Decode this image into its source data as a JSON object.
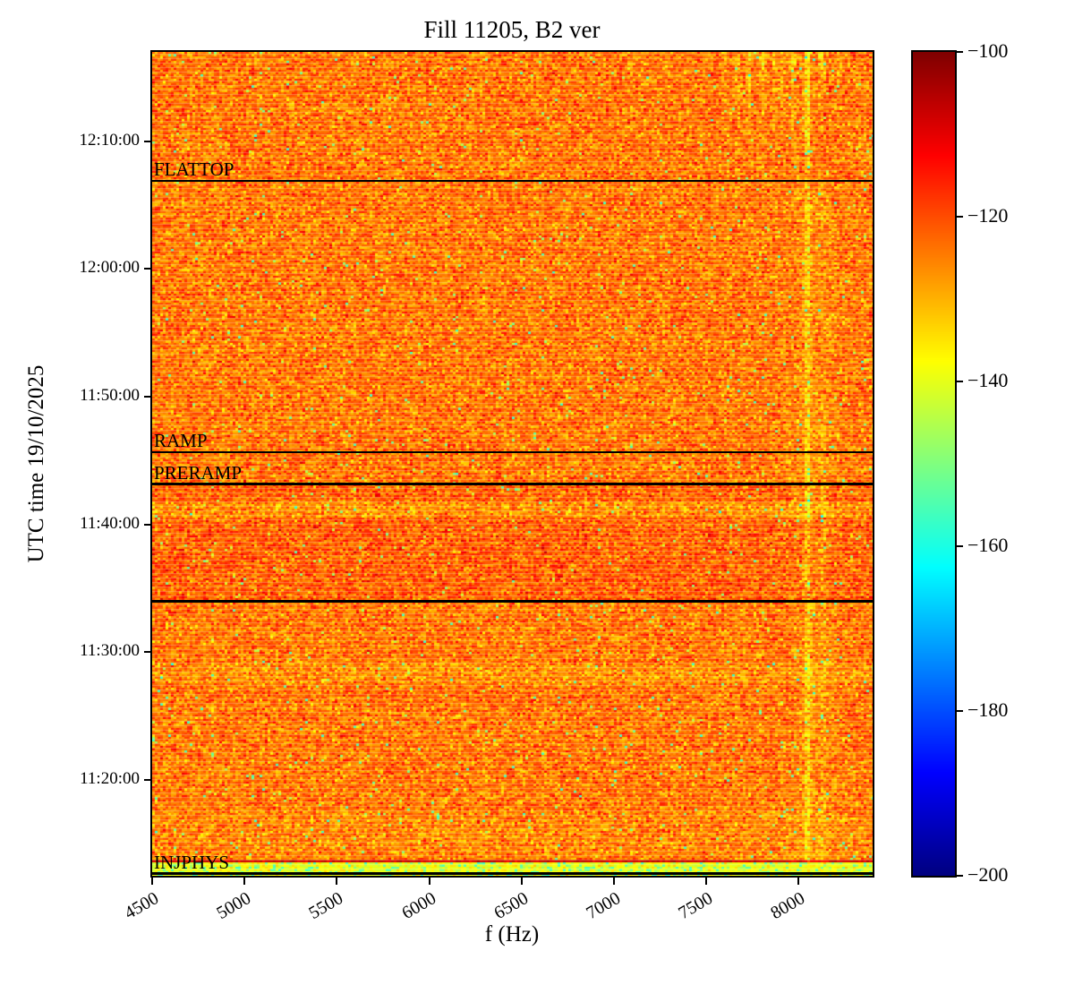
{
  "chart_data": {
    "type": "heatmap",
    "title": "Fill 11205, B2 ver",
    "xlabel": "f (Hz)",
    "ylabel": "UTC time 19/10/2025",
    "date": "19/10/2025",
    "x_range_hz": [
      4500,
      8400
    ],
    "x_ticks_hz": [
      4500,
      5000,
      5500,
      6000,
      6500,
      7000,
      7500,
      8000
    ],
    "y_time_range": [
      "11:12:30",
      "12:17:00"
    ],
    "y_ticks": [
      "11:20:00",
      "11:30:00",
      "11:40:00",
      "11:50:00",
      "12:00:00",
      "12:10:00"
    ],
    "colorbar": {
      "colormap": "jet",
      "range_db": [
        -200,
        -100
      ],
      "ticks_db": [
        -100,
        -120,
        -140,
        -160,
        -180,
        -200
      ]
    },
    "beam_mode_lines": [
      {
        "label": "FLATTOP",
        "time": "12:06:55"
      },
      {
        "label": "RAMP",
        "time": "11:45:40"
      },
      {
        "label": "PRERAMP",
        "time": "11:43:10"
      },
      {
        "label": "",
        "time": "11:34:00"
      },
      {
        "label": "INJPHYS",
        "time": "11:12:40"
      }
    ],
    "noise_floor_db": -124,
    "noise_std_db": 5,
    "features": {
      "injection_band": {
        "t0": "11:12:30",
        "t1": "11:13:30",
        "db": -139,
        "speck_prob": 0.18
      },
      "hot_row": {
        "time": "11:13:37",
        "db": -108
      },
      "time_bands": [
        {
          "t0": "11:13:40",
          "t1": "11:17:30",
          "delta_db": -1.5
        },
        {
          "t0": "11:27:30",
          "t1": "11:29:10",
          "delta_db": -2.5
        },
        {
          "t0": "11:34:00",
          "t1": "11:40:30",
          "delta_db": 2.2
        },
        {
          "t0": "11:40:30",
          "t1": "11:41:45",
          "delta_db": -2.5
        },
        {
          "t0": "11:41:45",
          "t1": "11:43:10",
          "delta_db": 1.8
        }
      ],
      "blob_trail": {
        "t0": "11:13:40",
        "t1": "11:45:40",
        "f_center_hz": 7880,
        "f_wiggle_hz": 120,
        "db_min": -112,
        "db_max": -103
      },
      "ramp_cluster": {
        "t0": "11:43:00",
        "t1": "11:52:30",
        "f_center_hz": 8060
      },
      "persistent_line": {
        "f_hz": 8040,
        "delta_db": -9
      },
      "secondary_line": {
        "f_hz": 8125,
        "delta_db": -4.5,
        "t_end": "11:50:00"
      },
      "broad_band": {
        "f_hz": 8070,
        "delta_db": -2.2,
        "t_end": "12:07:00"
      },
      "top_stripes": {
        "t_start": "12:04:00",
        "freqs_hz": [
          7590,
          7660,
          7725,
          7800,
          7860,
          7895,
          7960,
          8040,
          8110,
          8210
        ],
        "db_peak": -106
      },
      "speck_prob": 0.012,
      "speck_db": -150
    }
  }
}
